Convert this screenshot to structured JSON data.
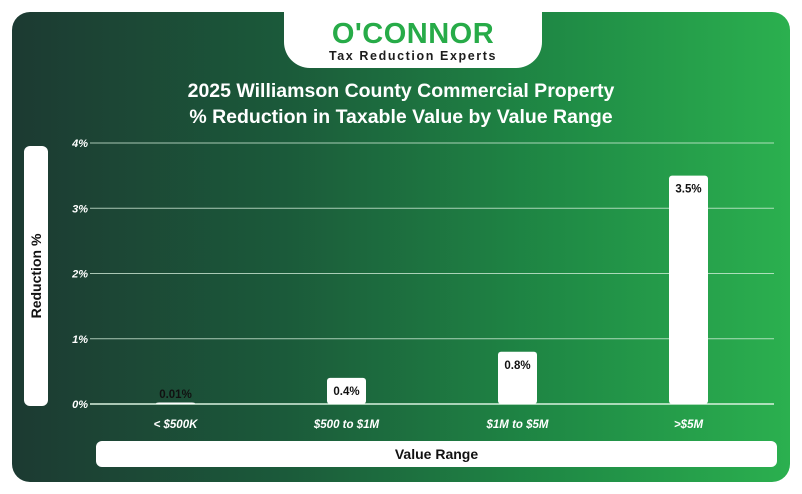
{
  "brand": {
    "name": "O'CONNOR",
    "tagline": "Tax Reduction Experts"
  },
  "chart_data": {
    "type": "bar",
    "title": "2025 Williamson County Commercial Property",
    "subtitle": "% Reduction in Taxable Value by Value Range",
    "xlabel": "Value Range",
    "ylabel": "Reduction %",
    "categories": [
      "< $500K",
      "$500 to $1M",
      "$1M to $5M",
      ">$5M"
    ],
    "values": [
      0.01,
      0.4,
      0.8,
      3.5
    ],
    "data_labels": [
      "0.01%",
      "0.4%",
      "0.8%",
      "3.5%"
    ],
    "yticks": [
      "0%",
      "1%",
      "2%",
      "3%",
      "4%"
    ],
    "ylim": [
      0,
      4
    ],
    "grid": true,
    "colors": {
      "bar": "#ffffff",
      "grid": "#d9f2df",
      "background_start": "#1c3a32",
      "background_end": "#2bb04f",
      "brand": "#27ab48"
    }
  }
}
